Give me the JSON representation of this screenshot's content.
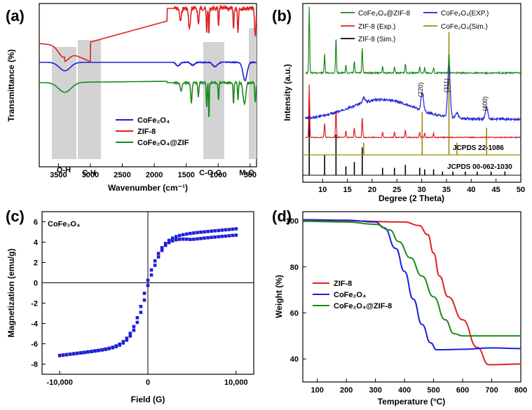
{
  "chart_data": [
    {
      "panel": "(a)",
      "type": "line",
      "title": "",
      "xlabel": "Wavenumber (cm⁻¹)",
      "ylabel": "Transmittance (%)",
      "xlim": [
        3800,
        400
      ],
      "x_ticks": [
        "3500",
        "3000",
        "2500",
        "2000",
        "1500",
        "1000",
        "500"
      ],
      "band_labels": [
        "O-H",
        "C-H",
        "C-O-C",
        "M-O"
      ],
      "series": [
        {
          "name": "CoFe₂O₄",
          "color": "#1f1fd6"
        },
        {
          "name": "ZIF-8",
          "color": "#e02020"
        },
        {
          "name": "CoFe₂O₄@ZIF",
          "color": "#1a8a1a"
        }
      ],
      "legend": [
        "CoFe₂O₄",
        "ZIF-8",
        "CoFe₂O₄@ZIF"
      ]
    },
    {
      "panel": "(b)",
      "type": "line",
      "xlabel": "Degree (2 Theta)",
      "ylabel": "Intensity (a.u.)",
      "xlim": [
        6,
        50
      ],
      "x_ticks": [
        "10",
        "15",
        "20",
        "25",
        "30",
        "35",
        "40",
        "45",
        "50"
      ],
      "peak_labels": [
        "(220)",
        "(311)",
        "(400)"
      ],
      "reference_labels": [
        "JCPDS 22-1086",
        "JCPDS 00-062-1030"
      ],
      "legend": [
        "CoFe₂O₄@ZIF-8",
        "CoFe₂O₄(EXP.)",
        "ZIF-8 (Exp.)",
        "CoFe₂O₄(Sim.)",
        "ZIF-8 (Sim.)"
      ],
      "series_colors": [
        "#1a8a1a",
        "#1f1fd6",
        "#e02020",
        "#9a8a10",
        "#000000"
      ]
    },
    {
      "panel": "(c)",
      "type": "scatter",
      "xlabel": "Field (G)",
      "ylabel": "Magnetization (emu/g)",
      "xlim": [
        -12000,
        12000
      ],
      "ylim": [
        -9,
        7
      ],
      "x_ticks": [
        "-10,000",
        "0",
        "10,000"
      ],
      "y_ticks": [
        "6",
        "4",
        "2",
        "0",
        "-2",
        "-4",
        "-6",
        "-8"
      ],
      "annotation": "CoFe₂O₄",
      "series": [
        {
          "name": "CoFe₂O₄",
          "color": "#1f1fd6",
          "Ms": 5.3,
          "Hc": 100
        }
      ]
    },
    {
      "panel": "(d)",
      "type": "line",
      "xlabel": "Temperature (°C)",
      "ylabel": "Weight (%)",
      "xlim": [
        50,
        800
      ],
      "ylim": [
        30,
        104
      ],
      "x_ticks": [
        "100",
        "200",
        "300",
        "400",
        "500",
        "600",
        "700",
        "800"
      ],
      "y_ticks": [
        "100",
        "80",
        "60",
        "40"
      ],
      "legend": [
        "ZIF-8",
        "CoFe₂O₄",
        "CoFe₂O₄@ZIF-8"
      ],
      "series": [
        {
          "name": "ZIF-8",
          "color": "#e02020",
          "x": [
            50,
            200,
            400,
            450,
            480,
            500,
            520,
            550,
            600,
            650,
            690,
            700,
            800
          ],
          "y": [
            100,
            100,
            99.5,
            98,
            94,
            86,
            76,
            67,
            57,
            45,
            37.5,
            37.5,
            37.8
          ]
        },
        {
          "name": "CoFe₂O₄",
          "color": "#1f1fd6",
          "x": [
            50,
            200,
            300,
            330,
            370,
            400,
            430,
            460,
            490,
            510,
            520,
            600,
            700,
            800
          ],
          "y": [
            100.5,
            100.3,
            99.5,
            97,
            88,
            78,
            66,
            55,
            47,
            44,
            44,
            44.2,
            44.8,
            44.5
          ]
        },
        {
          "name": "CoFe₂O₄@ZIF-8",
          "color": "#1a8a1a",
          "x": [
            50,
            200,
            300,
            350,
            380,
            420,
            460,
            500,
            540,
            570,
            600,
            700,
            800
          ],
          "y": [
            99.8,
            99.5,
            98.5,
            96,
            91,
            84,
            76,
            67,
            57,
            51,
            50,
            50,
            50
          ]
        }
      ]
    }
  ]
}
